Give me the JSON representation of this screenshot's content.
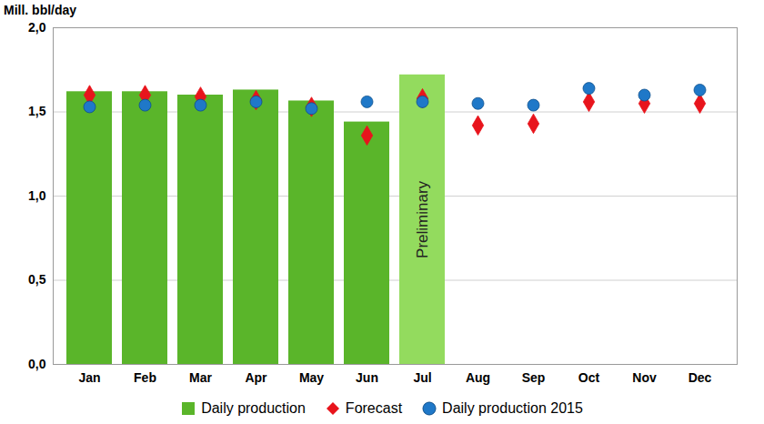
{
  "chart_data": {
    "type": "bar",
    "title": "Mill. bbl/day",
    "categories": [
      "Jan",
      "Feb",
      "Mar",
      "Apr",
      "May",
      "Jun",
      "Jul",
      "Aug",
      "Sep",
      "Oct",
      "Nov",
      "Dec"
    ],
    "series": [
      {
        "name": "Daily production",
        "type": "bar",
        "color": "#5ab52a",
        "colors": [
          "#5ab52a",
          "#5ab52a",
          "#5ab52a",
          "#5ab52a",
          "#5ab52a",
          "#5ab52a",
          "#93db5e",
          null,
          null,
          null,
          null,
          null
        ],
        "values": [
          1.62,
          1.62,
          1.6,
          1.63,
          1.565,
          1.44,
          1.72,
          null,
          null,
          null,
          null,
          null
        ]
      },
      {
        "name": "Forecast",
        "type": "scatter",
        "marker": "diamond",
        "color": "#e8141c",
        "values": [
          1.6,
          1.6,
          1.59,
          1.57,
          1.53,
          1.36,
          1.58,
          1.42,
          1.43,
          1.56,
          1.55,
          1.55
        ]
      },
      {
        "name": "Daily production 2015",
        "type": "scatter",
        "marker": "circle",
        "color": "#1f78c8",
        "values": [
          1.53,
          1.54,
          1.54,
          1.56,
          1.52,
          1.56,
          1.56,
          1.55,
          1.54,
          1.64,
          1.6,
          1.63
        ]
      }
    ],
    "annotations": [
      {
        "text": "Preliminary",
        "category": "Jul"
      }
    ],
    "ylim": [
      0,
      2
    ],
    "yticks": [
      {
        "value": 0,
        "label": "0,0"
      },
      {
        "value": 0.5,
        "label": "0,5"
      },
      {
        "value": 1,
        "label": "1,0"
      },
      {
        "value": 1.5,
        "label": "1,5"
      },
      {
        "value": 2,
        "label": "2,0"
      }
    ],
    "grid": true,
    "legend": "bottom"
  }
}
